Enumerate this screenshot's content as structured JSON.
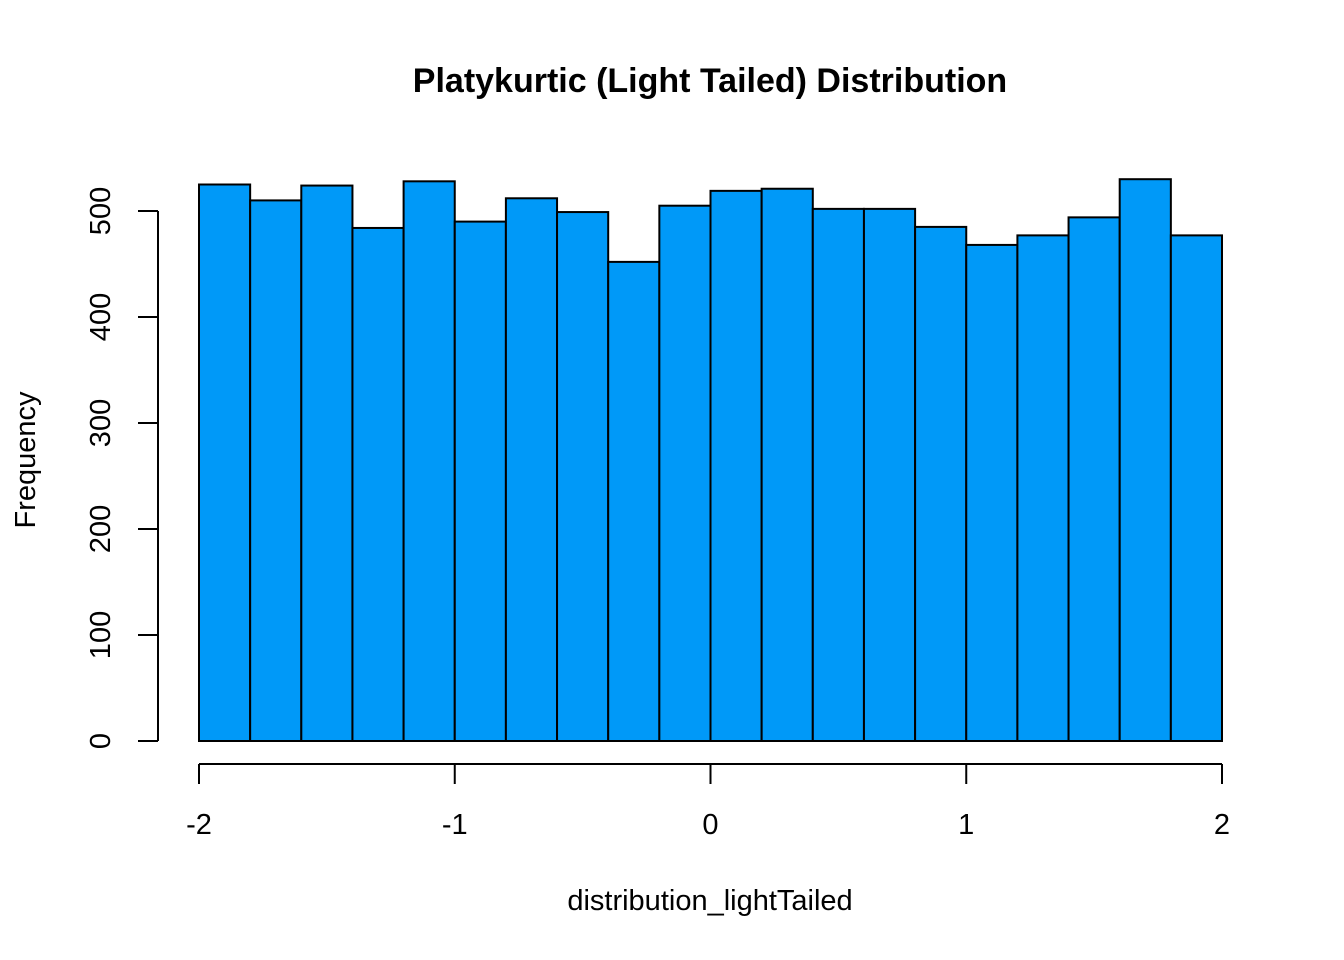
{
  "chart_data": {
    "type": "bar",
    "title": "Platykurtic (Light Tailed) Distribution",
    "xlabel": "distribution_lightTailed",
    "ylabel": "Frequency",
    "bar_color": "#0099F8",
    "xlim": [
      -2,
      2
    ],
    "ylim": [
      0,
      530
    ],
    "x_ticks": [
      -2,
      -1,
      0,
      1,
      2
    ],
    "y_ticks": [
      0,
      100,
      200,
      300,
      400,
      500
    ],
    "bin_edges": [
      -2.0,
      -1.8,
      -1.6,
      -1.4,
      -1.2,
      -1.0,
      -0.8,
      -0.6,
      -0.4,
      -0.2,
      0.0,
      0.2,
      0.4,
      0.6,
      0.8,
      1.0,
      1.2,
      1.4,
      1.6,
      1.8,
      2.0
    ],
    "values": [
      525,
      510,
      524,
      484,
      528,
      490,
      512,
      499,
      452,
      505,
      519,
      521,
      502,
      502,
      485,
      468,
      477,
      494,
      530,
      477
    ],
    "grid": false,
    "legend": "none"
  }
}
